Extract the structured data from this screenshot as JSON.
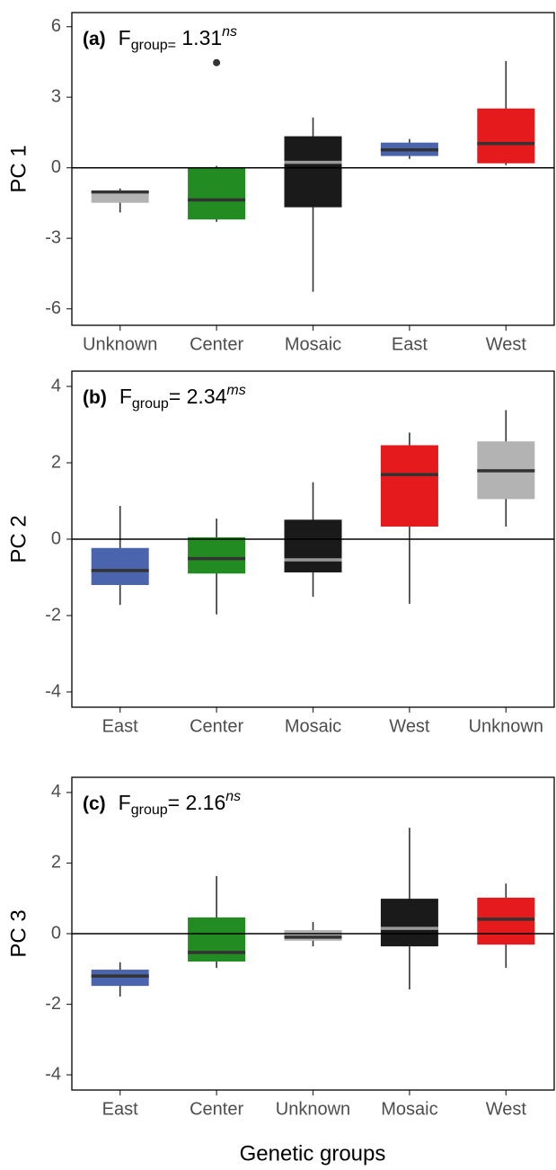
{
  "chart_data": [
    {
      "type": "box",
      "panel_label": "(a)",
      "stat_label": "F",
      "stat_subscript": "group=",
      "stat_value": " 1.31",
      "stat_superscript": "ns",
      "ylabel": "PC 1",
      "ylim": [
        -6.7,
        6.6
      ],
      "yticks": [
        -6,
        -3,
        0,
        3,
        6
      ],
      "hline": 0,
      "categories": [
        "Unknown",
        "Center",
        "Mosaic",
        "East",
        "West"
      ],
      "colors": [
        "#b3b3b3",
        "#228b22",
        "#1a1a1a",
        "#4a64ad",
        "#e41a1c"
      ],
      "median_colors": [
        "#333333",
        "#333333",
        "#999999",
        "#333333",
        "#333333"
      ],
      "boxes": [
        {
          "whisker_low": -1.9,
          "q1": -1.49,
          "median": -1.03,
          "q3": -0.99,
          "whisker_high": -0.88,
          "outliers": []
        },
        {
          "whisker_low": -2.3,
          "q1": -2.2,
          "median": -1.37,
          "q3": 0.0,
          "whisker_high": 0.08,
          "outliers": [
            4.47
          ]
        },
        {
          "whisker_low": -5.27,
          "q1": -1.68,
          "median": 0.23,
          "q3": 1.34,
          "whisker_high": 2.14,
          "outliers": []
        },
        {
          "whisker_low": 0.38,
          "q1": 0.5,
          "median": 0.76,
          "q3": 1.07,
          "whisker_high": 1.22,
          "outliers": []
        },
        {
          "whisker_low": 0.11,
          "q1": 0.19,
          "median": 1.03,
          "q3": 2.52,
          "whisker_high": 4.54,
          "outliers": []
        }
      ]
    },
    {
      "type": "box",
      "panel_label": "(b)",
      "stat_label": "F",
      "stat_subscript": "group",
      "stat_value": "= 2.34",
      "stat_superscript": "ms",
      "ylabel": "PC 2",
      "ylim": [
        -4.4,
        4.4
      ],
      "yticks": [
        -4,
        -2,
        0,
        2,
        4
      ],
      "hline": 0,
      "categories": [
        "East",
        "Center",
        "Mosaic",
        "West",
        "Unknown"
      ],
      "colors": [
        "#4a64ad",
        "#228b22",
        "#1a1a1a",
        "#e41a1c",
        "#b3b3b3"
      ],
      "median_colors": [
        "#333333",
        "#333333",
        "#999999",
        "#333333",
        "#333333"
      ],
      "boxes": [
        {
          "whisker_low": -1.72,
          "q1": -1.2,
          "median": -0.82,
          "q3": -0.23,
          "whisker_high": 0.87,
          "outliers": []
        },
        {
          "whisker_low": -1.97,
          "q1": -0.9,
          "median": -0.51,
          "q3": 0.05,
          "whisker_high": 0.54,
          "outliers": []
        },
        {
          "whisker_low": -1.51,
          "q1": -0.87,
          "median": -0.54,
          "q3": 0.51,
          "whisker_high": 1.49,
          "outliers": []
        },
        {
          "whisker_low": -1.69,
          "q1": 0.33,
          "median": 1.69,
          "q3": 2.46,
          "whisker_high": 2.79,
          "outliers": []
        },
        {
          "whisker_low": 0.33,
          "q1": 1.05,
          "median": 1.79,
          "q3": 2.56,
          "whisker_high": 3.38,
          "outliers": []
        }
      ]
    },
    {
      "type": "box",
      "panel_label": "(c)",
      "stat_label": "F",
      "stat_subscript": "group",
      "stat_value": "= 2.16",
      "stat_superscript": "ns",
      "ylabel": "PC 3",
      "ylim": [
        -4.43,
        4.43
      ],
      "yticks": [
        -4,
        -2,
        0,
        2,
        4
      ],
      "hline": 0,
      "categories": [
        "East",
        "Center",
        "Unknown",
        "Mosaic",
        "West"
      ],
      "colors": [
        "#4a64ad",
        "#228b22",
        "#b3b3b3",
        "#1a1a1a",
        "#e41a1c"
      ],
      "median_colors": [
        "#333333",
        "#333333",
        "#333333",
        "#999999",
        "#333333"
      ],
      "boxes": [
        {
          "whisker_low": -1.78,
          "q1": -1.48,
          "median": -1.2,
          "q3": -1.02,
          "whisker_high": -0.81,
          "outliers": []
        },
        {
          "whisker_low": -0.97,
          "q1": -0.79,
          "median": -0.53,
          "q3": 0.46,
          "whisker_high": 1.63,
          "outliers": []
        },
        {
          "whisker_low": -0.36,
          "q1": -0.2,
          "median": -0.1,
          "q3": 0.1,
          "whisker_high": 0.33,
          "outliers": []
        },
        {
          "whisker_low": -1.58,
          "q1": -0.36,
          "median": 0.15,
          "q3": 0.99,
          "whisker_high": 3.0,
          "outliers": []
        },
        {
          "whisker_low": -0.97,
          "q1": -0.31,
          "median": 0.41,
          "q3": 1.02,
          "whisker_high": 1.42,
          "outliers": []
        }
      ]
    }
  ],
  "xlabel": "Genetic groups"
}
